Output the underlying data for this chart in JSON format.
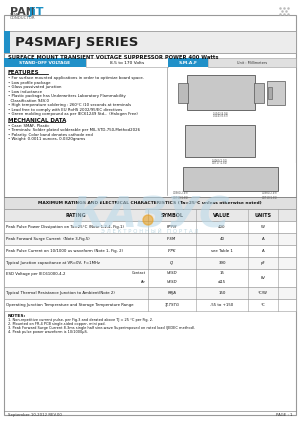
{
  "title": "P4SMAFJ SERIES",
  "subtitle": "SURFACE MOUNT TRANSIENT VOLTAGE SUPPRESSOR POWER 400 Watts",
  "standoff_label": "STAND-OFF VOLTAGE",
  "standoff_value": "8.5 to 170 Volts",
  "package_label": "S.M.A.F",
  "unit_label": "Unit : Millimeters",
  "features_title": "FEATURES",
  "features": [
    "For surface mounted applications in order to optimize board space.",
    "Low profile package",
    "Glass passivated junction",
    "Low inductance",
    "Plastic package has Underwriters Laboratory Flammability",
    "  Classification 94V-0",
    "High temperature soldering : 260°C /10 seconds at terminals",
    "Lead free to comply with EU RoHS 2002/95/EC directives",
    "Green molding compound as per IEC61249 Std.,  (Halogen Free)"
  ],
  "mech_title": "MECHANICAL DATA",
  "mech": [
    "Case: SMAF, Plastic",
    "Terminals: Solder plated solderable per MIL-STD-750,Method2026",
    "Polarity: Color band denotes cathode end",
    "Weight: 0.0011 ounces, 0.0320grams"
  ],
  "table_title": "MAXIMUM RATINGS AND ELECTRICAL CHARACTERISTICS (Ta=25°C unless otherwise noted)",
  "table_headers": [
    "RATING",
    "SYMBOL",
    "VALUE",
    "UNITS"
  ],
  "table_rows": [
    [
      "Peak Pulse Power Dissipation on Ta=25°C (Note 1,2,4, Fig.1)",
      "PPPM",
      "400",
      "W"
    ],
    [
      "Peak Forward Surge Current  (Note 3,Fig.5)",
      "IFSM",
      "40",
      "A"
    ],
    [
      "Peak Pulse Current on 10/1000 us waveform (Note 1, Fig. 2)",
      "IPPK",
      "see Table 1",
      "A"
    ],
    [
      "Typical Junction capacitance at VR=0V, F=1MHz",
      "CJ",
      "390",
      "pF"
    ],
    [
      "ESD Voltage per IEC61000-4-2",
      "",
      "",
      "kV"
    ],
    [
      "Typical Thermal Resistance Junction to Ambient(Note 2)",
      "RθJA",
      "150",
      "°C/W"
    ],
    [
      "Operating Junction Temperature and Storage Temperature Range",
      "TJ,TSTG",
      "-55 to +150",
      "°C"
    ]
  ],
  "esd_contact": "Contact",
  "esd_air": "Air",
  "esd_sym_contact": "VESD",
  "esd_sym_air": "VESD",
  "esd_val_contact": "15",
  "esd_val_air": "≤15",
  "notes_title": "NOTES:",
  "notes": [
    "1. Non-repetitive current pulse, per Fig.3 and derated above TJ = 25 °C per Fig. 2.",
    "2. Mounted on FR-4 PCB single-sided copper, mini pad.",
    "3. Peak Forward Surge Current 8.3ms single half sine-wave Superimposed on rated load (JEDEC method).",
    "4. Peak pulse power waveform is 10/1000μS."
  ],
  "footer_left": "September 10,2012 REV.00",
  "footer_right": "PAGE : 1",
  "bg_color": "#ffffff",
  "blue_color": "#2090c8",
  "light_gray": "#e8e8e8",
  "mid_gray": "#cccccc",
  "dark_gray": "#888888",
  "text_color": "#111111",
  "watermark_color": "#b8d8e8",
  "watermark_text_color": "#a0c8d8"
}
